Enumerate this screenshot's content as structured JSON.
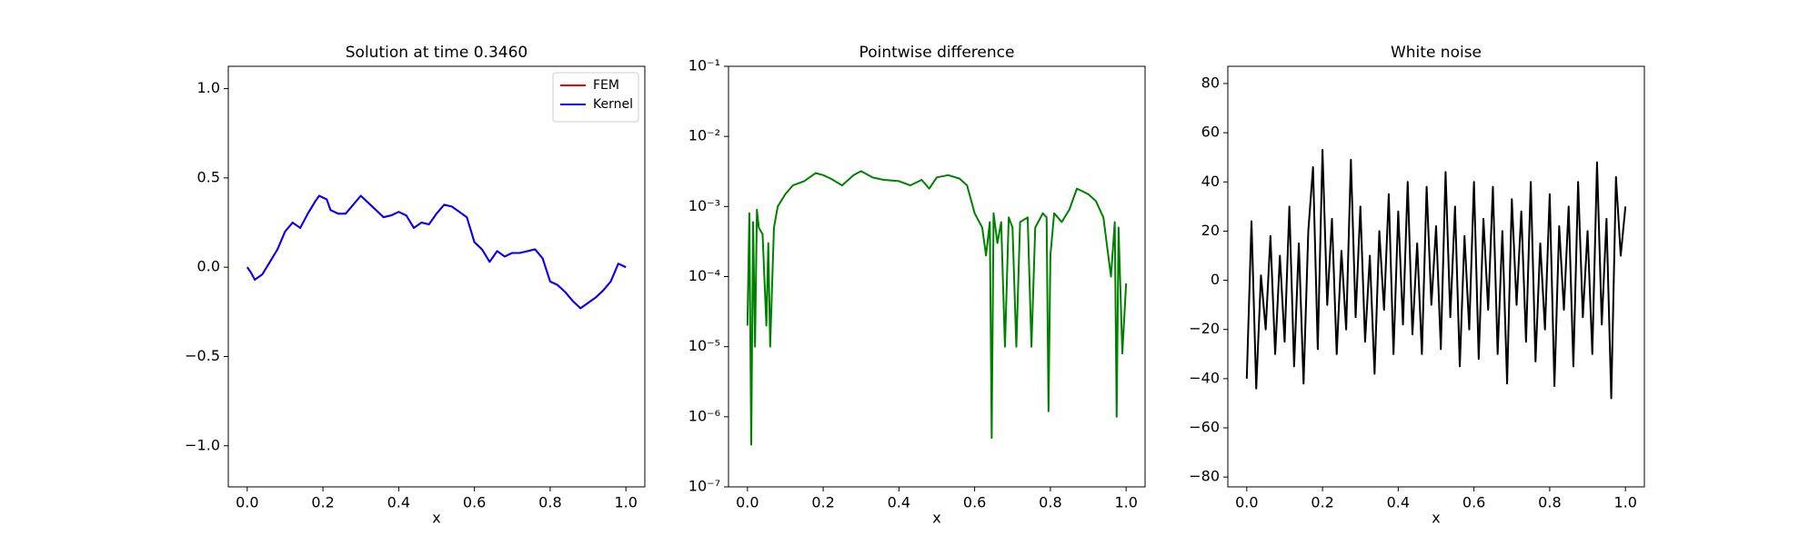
{
  "chart_data": [
    {
      "type": "line",
      "title": "Solution at time 0.3460",
      "xlabel": "x",
      "xlim": [
        -0.05,
        1.05
      ],
      "ylim": [
        -1.23,
        1.125
      ],
      "xticks": [
        {
          "value": 0,
          "label": "0.0"
        },
        0.2,
        0.4,
        0.6,
        0.8,
        {
          "value": 1,
          "label": "1.0"
        }
      ],
      "yticks": [
        {
          "value": -1,
          "label": "−1.0"
        },
        {
          "value": -0.5,
          "label": "−0.5"
        },
        {
          "value": 0,
          "label": "0.0"
        },
        0.5,
        {
          "value": 1,
          "label": "1.0"
        }
      ],
      "legend": "upper right",
      "x": [
        0,
        0.01,
        0.02,
        0.04,
        0.06,
        0.08,
        0.1,
        0.12,
        0.14,
        0.16,
        0.18,
        0.19,
        0.21,
        0.22,
        0.24,
        0.26,
        0.28,
        0.3,
        0.32,
        0.34,
        0.36,
        0.38,
        0.4,
        0.42,
        0.44,
        0.46,
        0.48,
        0.5,
        0.52,
        0.54,
        0.56,
        0.58,
        0.6,
        0.62,
        0.64,
        0.66,
        0.68,
        0.7,
        0.72,
        0.74,
        0.76,
        0.78,
        0.8,
        0.82,
        0.84,
        0.86,
        0.88,
        0.9,
        0.92,
        0.94,
        0.96,
        0.98,
        1.0
      ],
      "series": [
        {
          "name": "FEM",
          "color": "#ff0000",
          "values": [
            0,
            -0.03,
            -0.07,
            -0.04,
            0.03,
            0.1,
            0.2,
            0.25,
            0.22,
            0.3,
            0.37,
            0.4,
            0.38,
            0.32,
            0.3,
            0.3,
            0.35,
            0.4,
            0.36,
            0.32,
            0.28,
            0.29,
            0.31,
            0.29,
            0.22,
            0.25,
            0.24,
            0.3,
            0.35,
            0.34,
            0.31,
            0.28,
            0.14,
            0.1,
            0.03,
            0.09,
            0.06,
            0.08,
            0.08,
            0.09,
            0.1,
            0.05,
            -0.08,
            -0.1,
            -0.14,
            -0.19,
            -0.23,
            -0.2,
            -0.17,
            -0.13,
            -0.08,
            0.02,
            0
          ]
        },
        {
          "name": "Kernel",
          "color": "#0000ff",
          "values": [
            0,
            -0.03,
            -0.07,
            -0.04,
            0.03,
            0.1,
            0.2,
            0.25,
            0.22,
            0.3,
            0.37,
            0.4,
            0.38,
            0.32,
            0.3,
            0.3,
            0.35,
            0.4,
            0.36,
            0.32,
            0.28,
            0.29,
            0.31,
            0.29,
            0.22,
            0.25,
            0.24,
            0.3,
            0.35,
            0.34,
            0.31,
            0.28,
            0.14,
            0.1,
            0.03,
            0.09,
            0.06,
            0.08,
            0.08,
            0.09,
            0.1,
            0.05,
            -0.08,
            -0.1,
            -0.14,
            -0.19,
            -0.23,
            -0.2,
            -0.17,
            -0.13,
            -0.08,
            0.02,
            0
          ]
        }
      ]
    },
    {
      "type": "line",
      "title": "Pointwise difference",
      "xlabel": "x",
      "yscale": "log",
      "xlim": [
        -0.05,
        1.05
      ],
      "ylim": [
        1e-07,
        0.1
      ],
      "xticks": [
        {
          "value": 0,
          "label": "0.0"
        },
        0.2,
        0.4,
        0.6,
        0.8,
        {
          "value": 1,
          "label": "1.0"
        }
      ],
      "yticks": [
        {
          "value": 1e-07,
          "label": "10⁻⁷"
        },
        {
          "value": 1e-06,
          "label": "10⁻⁶"
        },
        {
          "value": 1e-05,
          "label": "10⁻⁵"
        },
        {
          "value": 0.0001,
          "label": "10⁻⁴"
        },
        {
          "value": 0.001,
          "label": "10⁻³"
        },
        {
          "value": 0.01,
          "label": "10⁻²"
        },
        {
          "value": 0.1,
          "label": "10⁻¹"
        }
      ],
      "x": [
        0,
        0.005,
        0.01,
        0.015,
        0.02,
        0.025,
        0.03,
        0.04,
        0.05,
        0.055,
        0.06,
        0.07,
        0.08,
        0.1,
        0.12,
        0.15,
        0.18,
        0.2,
        0.22,
        0.25,
        0.28,
        0.3,
        0.33,
        0.36,
        0.4,
        0.43,
        0.46,
        0.48,
        0.5,
        0.53,
        0.56,
        0.58,
        0.6,
        0.62,
        0.63,
        0.64,
        0.645,
        0.65,
        0.66,
        0.67,
        0.68,
        0.69,
        0.7,
        0.71,
        0.72,
        0.74,
        0.75,
        0.76,
        0.78,
        0.79,
        0.795,
        0.8,
        0.81,
        0.83,
        0.85,
        0.87,
        0.9,
        0.92,
        0.94,
        0.96,
        0.97,
        0.975,
        0.98,
        0.99,
        1.0
      ],
      "series": [
        {
          "color": "#008000",
          "values": [
            2e-05,
            0.0008,
            4e-07,
            0.0006,
            1e-05,
            0.0009,
            0.0005,
            0.0004,
            2e-05,
            0.0003,
            1e-05,
            0.0005,
            0.001,
            0.0015,
            0.002,
            0.0023,
            0.003,
            0.0028,
            0.0025,
            0.002,
            0.0028,
            0.0032,
            0.0026,
            0.0024,
            0.0023,
            0.002,
            0.0024,
            0.0018,
            0.0026,
            0.0028,
            0.0025,
            0.002,
            0.0008,
            0.0005,
            0.0002,
            0.0006,
            5e-07,
            0.0008,
            0.0003,
            0.0006,
            1e-05,
            0.0007,
            0.0005,
            1e-05,
            0.0006,
            0.0007,
            1e-05,
            0.0005,
            0.0008,
            0.0007,
            1.2e-06,
            0.0002,
            0.0008,
            0.0006,
            0.0009,
            0.0018,
            0.0015,
            0.0012,
            0.0007,
            0.0001,
            0.0006,
            1e-06,
            0.0005,
            8e-06,
            8e-05
          ]
        }
      ]
    },
    {
      "type": "line",
      "title": "White noise",
      "xlabel": "x",
      "xlim": [
        -0.05,
        1.05
      ],
      "ylim": [
        -84,
        87
      ],
      "xticks": [
        {
          "value": 0,
          "label": "0.0"
        },
        0.2,
        0.4,
        0.6,
        0.8,
        {
          "value": 1,
          "label": "1.0"
        }
      ],
      "yticks": [
        {
          "value": -80,
          "label": "−80"
        },
        {
          "value": -60,
          "label": "−60"
        },
        {
          "value": -40,
          "label": "−40"
        },
        {
          "value": -20,
          "label": "−20"
        },
        0,
        20,
        40,
        60,
        80
      ],
      "x": [
        0,
        0.0125,
        0.025,
        0.0375,
        0.05,
        0.0625,
        0.075,
        0.0875,
        0.1,
        0.1125,
        0.125,
        0.1375,
        0.15,
        0.1625,
        0.175,
        0.1875,
        0.2,
        0.2125,
        0.225,
        0.2375,
        0.25,
        0.2625,
        0.275,
        0.2875,
        0.3,
        0.3125,
        0.325,
        0.3375,
        0.35,
        0.3625,
        0.375,
        0.3875,
        0.4,
        0.4125,
        0.425,
        0.4375,
        0.45,
        0.4625,
        0.475,
        0.4875,
        0.5,
        0.5125,
        0.525,
        0.5375,
        0.55,
        0.5625,
        0.575,
        0.5875,
        0.6,
        0.6125,
        0.625,
        0.6375,
        0.65,
        0.6625,
        0.675,
        0.6875,
        0.7,
        0.7125,
        0.725,
        0.7375,
        0.75,
        0.7625,
        0.775,
        0.7875,
        0.8,
        0.8125,
        0.825,
        0.8375,
        0.85,
        0.8625,
        0.875,
        0.8875,
        0.9,
        0.9125,
        0.925,
        0.9375,
        0.95,
        0.9625,
        0.975,
        0.9875,
        1.0
      ],
      "series": [
        {
          "color": "#000000",
          "values": [
            -40,
            24,
            -44,
            2,
            -20,
            18,
            -30,
            10,
            -25,
            30,
            -35,
            15,
            -42,
            20,
            46,
            -28,
            53,
            -10,
            25,
            -30,
            12,
            -20,
            49,
            -15,
            30,
            -25,
            10,
            -38,
            20,
            -12,
            35,
            -30,
            28,
            -18,
            40,
            -22,
            15,
            -30,
            38,
            -10,
            22,
            -28,
            44,
            -15,
            30,
            -35,
            18,
            -20,
            40,
            -32,
            25,
            -12,
            38,
            -30,
            20,
            -42,
            33,
            -10,
            28,
            -25,
            40,
            -33,
            15,
            -20,
            35,
            -43,
            22,
            -12,
            30,
            -35,
            40,
            -15,
            20,
            -30,
            48,
            -18,
            25,
            -48,
            42,
            10,
            30
          ]
        }
      ]
    }
  ]
}
